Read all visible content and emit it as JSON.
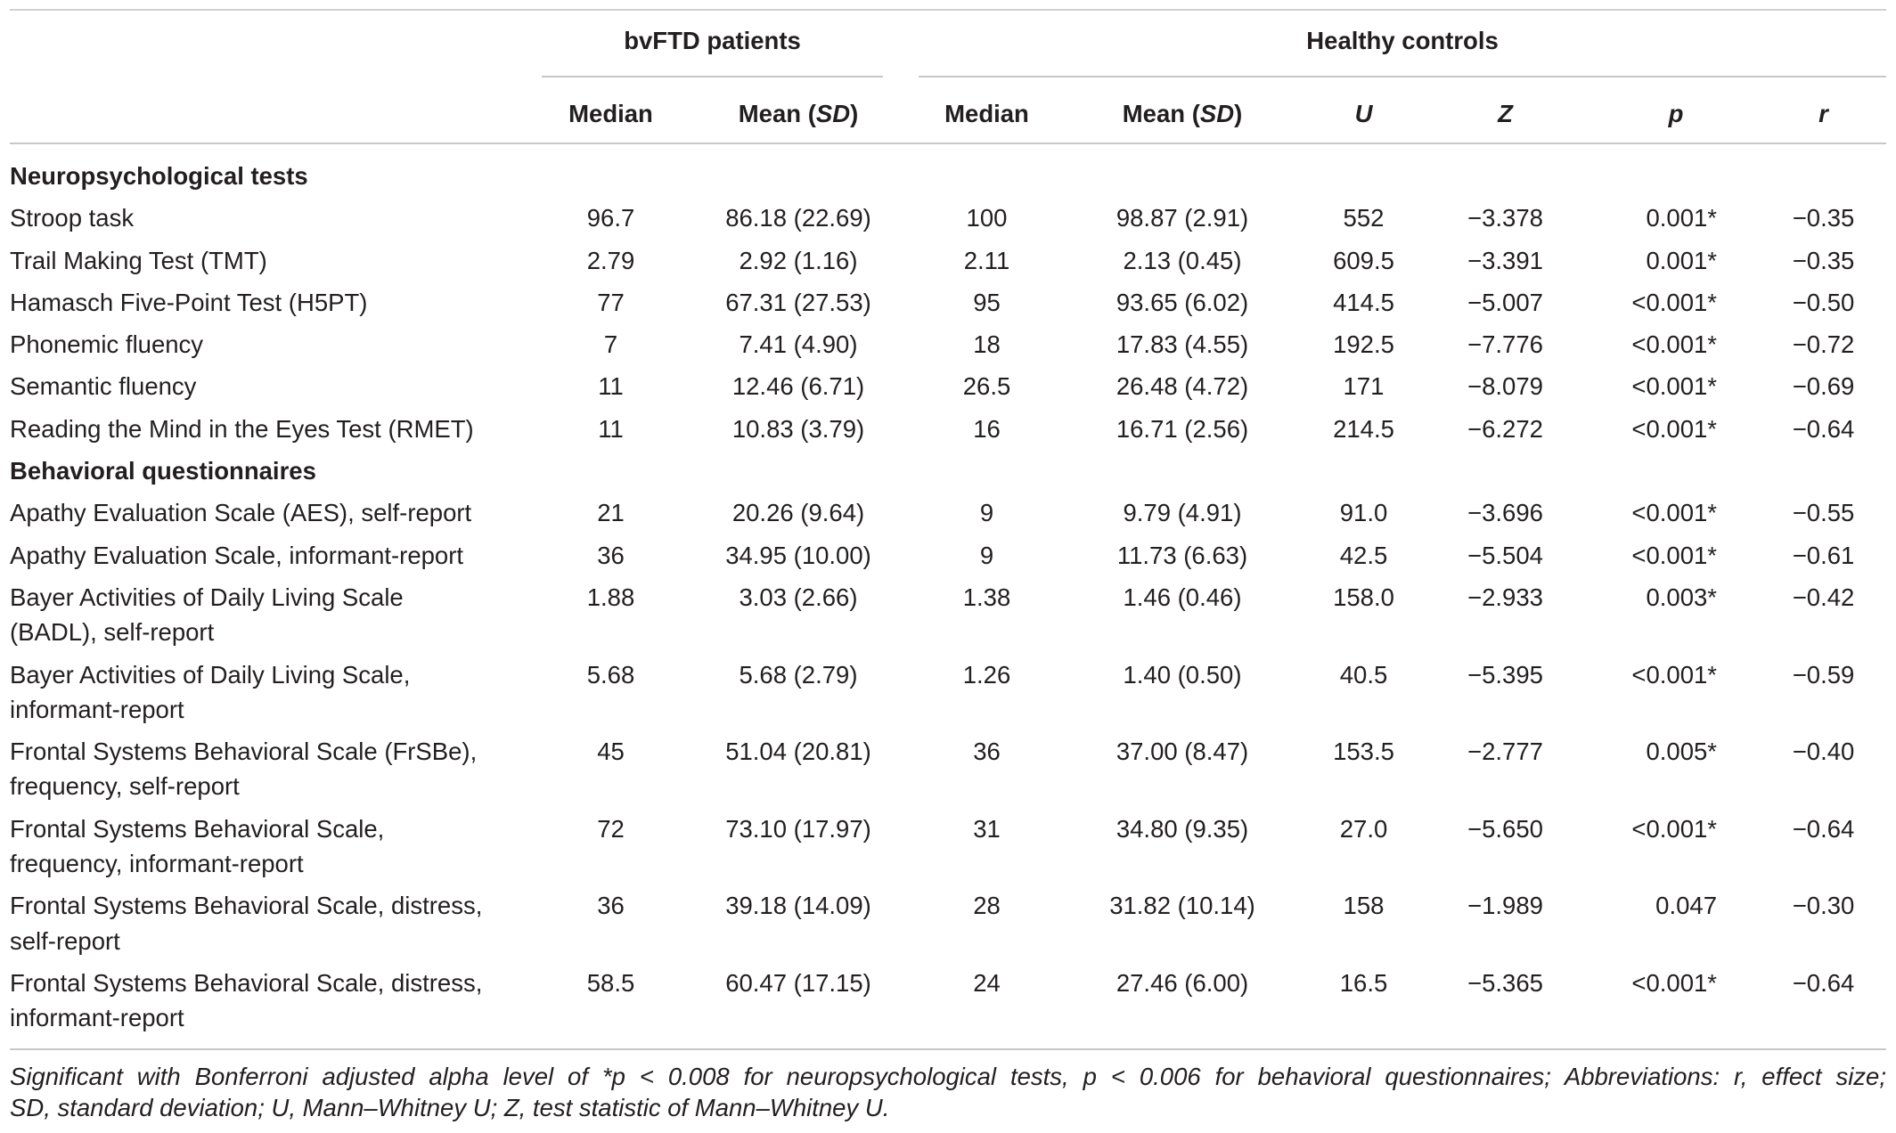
{
  "header": {
    "groups": {
      "bvftd": "bvFTD patients",
      "controls": "Healthy controls"
    },
    "columns": {
      "median_bvftd": "Median",
      "mean_bvftd": {
        "prefix": "Mean (",
        "italic": "SD",
        "suffix": ")"
      },
      "median_controls": "Median",
      "mean_controls": {
        "prefix": "Mean (",
        "italic": "SD",
        "suffix": ")"
      },
      "u": "U",
      "z": "Z",
      "p": "p",
      "r": "r"
    }
  },
  "sections": [
    {
      "title": "Neuropsychological tests",
      "rows": [
        {
          "label": "Stroop task",
          "bvftd_median": "96.7",
          "bvftd_mean_sd": "86.18 (22.69)",
          "controls_median": "100",
          "controls_mean_sd": "98.87 (2.91)",
          "u": "552",
          "z": "−3.378",
          "p": "0.001*",
          "r": "−0.35"
        },
        {
          "label": "Trail Making Test (TMT)",
          "bvftd_median": "2.79",
          "bvftd_mean_sd": "2.92 (1.16)",
          "controls_median": "2.11",
          "controls_mean_sd": "2.13 (0.45)",
          "u": "609.5",
          "z": "−3.391",
          "p": "0.001*",
          "r": "−0.35"
        },
        {
          "label": "Hamasch Five-Point Test (H5PT)",
          "bvftd_median": "77",
          "bvftd_mean_sd": "67.31 (27.53)",
          "controls_median": "95",
          "controls_mean_sd": "93.65 (6.02)",
          "u": "414.5",
          "z": "−5.007",
          "p": "<0.001*",
          "r": "−0.50"
        },
        {
          "label": "Phonemic fluency",
          "bvftd_median": "7",
          "bvftd_mean_sd": "7.41 (4.90)",
          "controls_median": "18",
          "controls_mean_sd": "17.83 (4.55)",
          "u": "192.5",
          "z": "−7.776",
          "p": "<0.001*",
          "r": "−0.72"
        },
        {
          "label": "Semantic fluency",
          "bvftd_median": "11",
          "bvftd_mean_sd": "12.46 (6.71)",
          "controls_median": "26.5",
          "controls_mean_sd": "26.48 (4.72)",
          "u": "171",
          "z": "−8.079",
          "p": "<0.001*",
          "r": "−0.69"
        },
        {
          "label": "Reading the Mind in the Eyes Test (RMET)",
          "bvftd_median": "11",
          "bvftd_mean_sd": "10.83 (3.79)",
          "controls_median": "16",
          "controls_mean_sd": "16.71 (2.56)",
          "u": "214.5",
          "z": "−6.272",
          "p": "<0.001*",
          "r": "−0.64"
        }
      ]
    },
    {
      "title": "Behavioral questionnaires",
      "rows": [
        {
          "label": "Apathy Evaluation Scale (AES), self-report",
          "bvftd_median": "21",
          "bvftd_mean_sd": "20.26 (9.64)",
          "controls_median": "9",
          "controls_mean_sd": "9.79 (4.91)",
          "u": "91.0",
          "z": "−3.696",
          "p": "<0.001*",
          "r": "−0.55"
        },
        {
          "label": "Apathy Evaluation Scale, informant-report",
          "bvftd_median": "36",
          "bvftd_mean_sd": "34.95 (10.00)",
          "controls_median": "9",
          "controls_mean_sd": "11.73 (6.63)",
          "u": "42.5",
          "z": "−5.504",
          "p": "<0.001*",
          "r": "−0.61"
        },
        {
          "label": [
            "Bayer Activities of Daily Living Scale",
            "(BADL), self-report"
          ],
          "bvftd_median": "1.88",
          "bvftd_mean_sd": "3.03 (2.66)",
          "controls_median": "1.38",
          "controls_mean_sd": "1.46 (0.46)",
          "u": "158.0",
          "z": "−2.933",
          "p": "0.003*",
          "r": "−0.42"
        },
        {
          "label": [
            "Bayer Activities of Daily Living Scale,",
            "informant-report"
          ],
          "bvftd_median": "5.68",
          "bvftd_mean_sd": "5.68 (2.79)",
          "controls_median": "1.26",
          "controls_mean_sd": "1.40 (0.50)",
          "u": "40.5",
          "z": "−5.395",
          "p": "<0.001*",
          "r": "−0.59"
        },
        {
          "label": [
            "Frontal Systems Behavioral Scale (FrSBe),",
            "frequency, self-report"
          ],
          "bvftd_median": "45",
          "bvftd_mean_sd": "51.04 (20.81)",
          "controls_median": "36",
          "controls_mean_sd": "37.00 (8.47)",
          "u": "153.5",
          "z": "−2.777",
          "p": "0.005*",
          "r": "−0.40"
        },
        {
          "label": [
            "Frontal Systems Behavioral Scale,",
            "frequency, informant-report"
          ],
          "bvftd_median": "72",
          "bvftd_mean_sd": "73.10 (17.97)",
          "controls_median": "31",
          "controls_mean_sd": "34.80 (9.35)",
          "u": "27.0",
          "z": "−5.650",
          "p": "<0.001*",
          "r": "−0.64"
        },
        {
          "label": [
            "Frontal Systems Behavioral Scale, distress,",
            "self-report"
          ],
          "bvftd_median": "36",
          "bvftd_mean_sd": "39.18 (14.09)",
          "controls_median": "28",
          "controls_mean_sd": "31.82 (10.14)",
          "u": "158",
          "z": "−1.989",
          "p": "0.047",
          "r": "−0.30"
        },
        {
          "label": [
            "Frontal Systems Behavioral Scale, distress,",
            "informant-report"
          ],
          "bvftd_median": "58.5",
          "bvftd_mean_sd": "60.47 (17.15)",
          "controls_median": "24",
          "controls_mean_sd": "27.46 (6.00)",
          "u": "16.5",
          "z": "−5.365",
          "p": "<0.001*",
          "r": "−0.64"
        }
      ]
    }
  ],
  "footnote": [
    "Significant with Bonferroni adjusted alpha level of *p < 0.008 for neuropsychological tests, p < 0.006 for behavioral questionnaires; Abbreviations: r, effect size;",
    "SD, standard deviation; U, Mann–Whitney U; Z, test statistic of Mann–Whitney U."
  ]
}
